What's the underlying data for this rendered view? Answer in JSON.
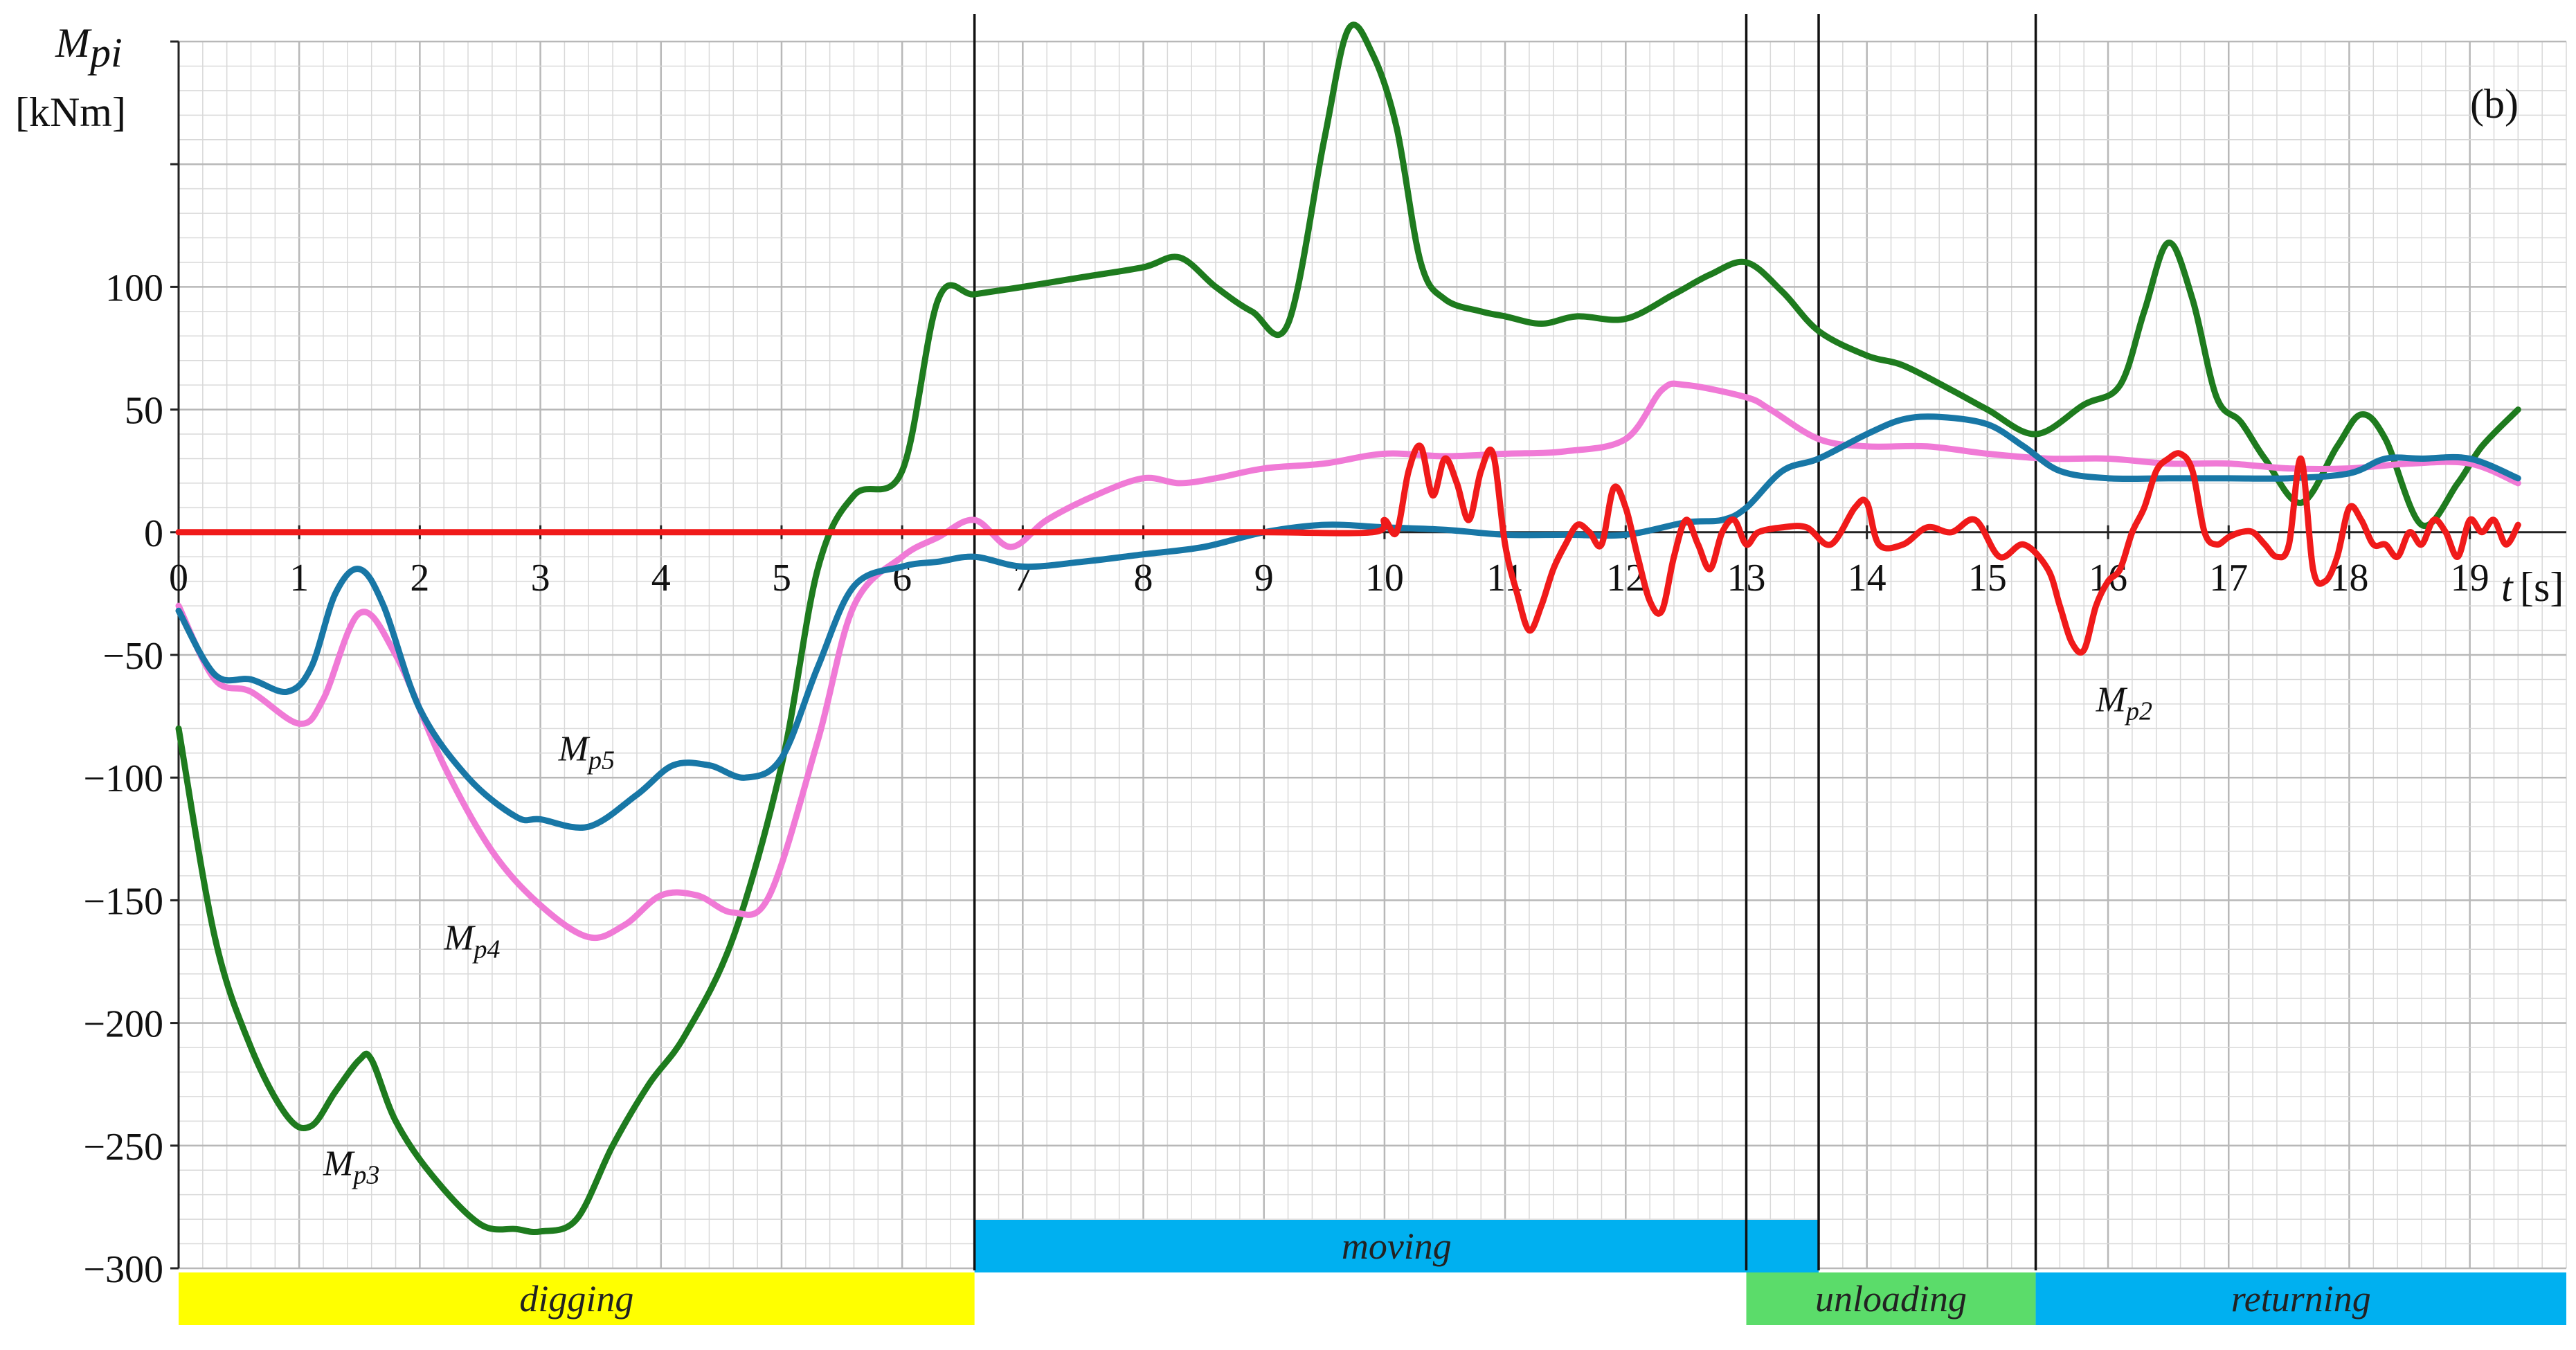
{
  "chart_data": {
    "type": "line",
    "panel_label": "(b)",
    "ylabel": "M",
    "ylabel_sub": "pi",
    "yunit": "[kNm]",
    "xlabel": "t",
    "xunit": "[s]",
    "xlim": [
      0,
      19.8
    ],
    "ylim": [
      -300,
      200
    ],
    "yticks": [
      -300,
      -250,
      -200,
      -150,
      -100,
      -50,
      0,
      50,
      100
    ],
    "ytick_labels": [
      "−300",
      "−250",
      "−200",
      "−150",
      "−100",
      "−50",
      "0",
      "50",
      "100"
    ],
    "xticks": [
      0,
      1,
      2,
      3,
      4,
      5,
      6,
      7,
      8,
      9,
      10,
      11,
      12,
      13,
      14,
      15,
      16,
      17,
      18,
      19
    ],
    "grid": true,
    "phase_lines_x": [
      6.6,
      13.0,
      13.6,
      15.4
    ],
    "phases": [
      {
        "label": "digging",
        "x0": 0,
        "x1": 6.6,
        "row": "lower",
        "color": "#ffff00"
      },
      {
        "label": "moving",
        "x0": 6.6,
        "x1": 13.6,
        "row": "upper",
        "color": "#00b0f0"
      },
      {
        "label": "unloading",
        "x0": 13.0,
        "x1": 15.4,
        "row": "lower",
        "color": "#5bdc6a"
      },
      {
        "label": "returning",
        "x0": 15.4,
        "x1": 19.8,
        "row": "lower",
        "color": "#00b0f0"
      }
    ],
    "annotations": [
      {
        "text": "M",
        "sub": "p5",
        "x": 3.15,
        "y": -93
      },
      {
        "text": "M",
        "sub": "p4",
        "x": 2.2,
        "y": -170
      },
      {
        "text": "M",
        "sub": "p3",
        "x": 1.2,
        "y": -262
      },
      {
        "text": "M",
        "sub": "p2",
        "x": 15.9,
        "y": -73
      }
    ],
    "series": [
      {
        "name": "Mp3",
        "color": "#1e7b1e",
        "x": [
          0,
          0.3,
          0.6,
          0.9,
          1.1,
          1.3,
          1.5,
          1.6,
          1.8,
          2.1,
          2.5,
          2.8,
          3.0,
          3.3,
          3.6,
          3.9,
          4.2,
          4.6,
          5.0,
          5.3,
          5.6,
          6.0,
          6.3,
          6.6,
          7.0,
          7.5,
          8.0,
          8.3,
          8.6,
          8.9,
          9.2,
          9.5,
          9.7,
          9.9,
          10.1,
          10.3,
          10.5,
          10.8,
          11.0,
          11.3,
          11.6,
          12.0,
          12.4,
          12.7,
          13.0,
          13.3,
          13.6,
          14.0,
          14.3,
          14.7,
          15.0,
          15.4,
          15.8,
          16.1,
          16.3,
          16.5,
          16.7,
          16.9,
          17.1,
          17.3,
          17.6,
          17.9,
          18.1,
          18.3,
          18.6,
          18.9,
          19.1,
          19.4
        ],
        "y": [
          -80,
          -165,
          -210,
          -238,
          -242,
          -228,
          -215,
          -215,
          -240,
          -262,
          -282,
          -284,
          -285,
          -280,
          -250,
          -225,
          -205,
          -165,
          -95,
          -15,
          15,
          25,
          95,
          97,
          100,
          104,
          108,
          112,
          100,
          90,
          85,
          160,
          205,
          195,
          165,
          110,
          95,
          90,
          88,
          85,
          88,
          87,
          97,
          105,
          110,
          98,
          82,
          72,
          68,
          58,
          50,
          40,
          52,
          60,
          90,
          118,
          95,
          55,
          45,
          30,
          12,
          35,
          48,
          38,
          3,
          20,
          35,
          50
        ]
      },
      {
        "name": "Mp4",
        "color": "#f07ad6",
        "x": [
          0,
          0.3,
          0.6,
          1.0,
          1.2,
          1.5,
          1.8,
          2.2,
          2.6,
          3.0,
          3.4,
          3.7,
          4.0,
          4.3,
          4.6,
          4.9,
          5.3,
          5.6,
          6.0,
          6.3,
          6.6,
          6.9,
          7.2,
          7.6,
          8.0,
          8.3,
          8.6,
          9.0,
          9.5,
          10.0,
          10.5,
          11.0,
          11.5,
          12.0,
          12.3,
          12.5,
          13.0,
          13.2,
          13.6,
          14.0,
          14.5,
          15.0,
          15.5,
          16.0,
          16.5,
          17.0,
          17.5,
          18.0,
          18.5,
          19.0,
          19.4
        ],
        "y": [
          -30,
          -60,
          -65,
          -78,
          -68,
          -33,
          -50,
          -95,
          -130,
          -152,
          -165,
          -160,
          -148,
          -148,
          -155,
          -148,
          -85,
          -30,
          -10,
          -2,
          5,
          -6,
          5,
          15,
          22,
          20,
          22,
          26,
          28,
          32,
          31,
          32,
          33,
          38,
          58,
          60,
          55,
          50,
          38,
          35,
          35,
          32,
          30,
          30,
          28,
          28,
          26,
          26,
          28,
          28,
          20
        ]
      },
      {
        "name": "Mp5",
        "color": "#1877a6",
        "x": [
          0,
          0.3,
          0.6,
          0.9,
          1.1,
          1.3,
          1.5,
          1.7,
          2.0,
          2.4,
          2.8,
          3.0,
          3.4,
          3.8,
          4.1,
          4.4,
          4.7,
          5.0,
          5.3,
          5.6,
          6.0,
          6.3,
          6.6,
          7.0,
          7.5,
          8.0,
          8.5,
          9.0,
          9.5,
          10.0,
          10.5,
          11.0,
          11.5,
          12.0,
          12.5,
          12.8,
          13.0,
          13.3,
          13.6,
          14.0,
          14.3,
          14.6,
          15.0,
          15.3,
          15.6,
          16.0,
          16.5,
          17.0,
          17.5,
          18.0,
          18.3,
          18.6,
          19.0,
          19.4
        ],
        "y": [
          -32,
          -58,
          -60,
          -65,
          -55,
          -25,
          -15,
          -30,
          -72,
          -100,
          -116,
          -117,
          -120,
          -107,
          -95,
          -95,
          -100,
          -92,
          -55,
          -22,
          -14,
          -12,
          -10,
          -14,
          -12,
          -9,
          -6,
          0,
          3,
          2,
          1,
          -1,
          -1,
          -1,
          4,
          5,
          10,
          25,
          30,
          40,
          46,
          47,
          44,
          35,
          25,
          22,
          22,
          22,
          22,
          24,
          30,
          30,
          30,
          22
        ]
      },
      {
        "name": "Mp2",
        "color": "#f01a1a",
        "x": [
          0,
          1,
          2,
          3,
          4,
          5,
          6,
          7,
          8,
          9,
          9.9,
          10.0,
          10.1,
          10.2,
          10.3,
          10.4,
          10.5,
          10.6,
          10.7,
          10.8,
          10.9,
          11.0,
          11.1,
          11.2,
          11.3,
          11.4,
          11.5,
          11.6,
          11.7,
          11.8,
          11.9,
          12.0,
          12.1,
          12.2,
          12.3,
          12.4,
          12.5,
          12.6,
          12.7,
          12.8,
          12.9,
          13.0,
          13.1,
          13.3,
          13.5,
          13.7,
          13.9,
          14.0,
          14.1,
          14.3,
          14.5,
          14.7,
          14.9,
          15.1,
          15.3,
          15.5,
          15.6,
          15.7,
          15.8,
          15.9,
          16.0,
          16.1,
          16.2,
          16.3,
          16.4,
          16.5,
          16.6,
          16.7,
          16.8,
          16.9,
          17.0,
          17.1,
          17.2,
          17.3,
          17.4,
          17.5,
          17.6,
          17.7,
          17.8,
          17.9,
          18.0,
          18.1,
          18.2,
          18.3,
          18.4,
          18.5,
          18.6,
          18.7,
          18.8,
          18.9,
          19.0,
          19.1,
          19.2,
          19.3,
          19.4
        ],
        "y": [
          0,
          0,
          0,
          0,
          0,
          0,
          0,
          0,
          0,
          0,
          0,
          5,
          0,
          25,
          35,
          15,
          30,
          20,
          5,
          25,
          32,
          -5,
          -25,
          -40,
          -30,
          -15,
          -5,
          3,
          0,
          -5,
          18,
          10,
          -10,
          -28,
          -32,
          -10,
          5,
          -5,
          -15,
          0,
          5,
          -5,
          0,
          2,
          2,
          -5,
          10,
          12,
          -5,
          -5,
          2,
          0,
          5,
          -10,
          -5,
          -15,
          -30,
          -45,
          -48,
          -30,
          -20,
          -15,
          0,
          10,
          25,
          30,
          32,
          25,
          0,
          -5,
          -2,
          0,
          0,
          -5,
          -10,
          -5,
          30,
          -15,
          -20,
          -10,
          10,
          5,
          -5,
          -5,
          -10,
          0,
          -5,
          5,
          0,
          -10,
          5,
          0,
          5,
          -5,
          3
        ]
      }
    ]
  }
}
